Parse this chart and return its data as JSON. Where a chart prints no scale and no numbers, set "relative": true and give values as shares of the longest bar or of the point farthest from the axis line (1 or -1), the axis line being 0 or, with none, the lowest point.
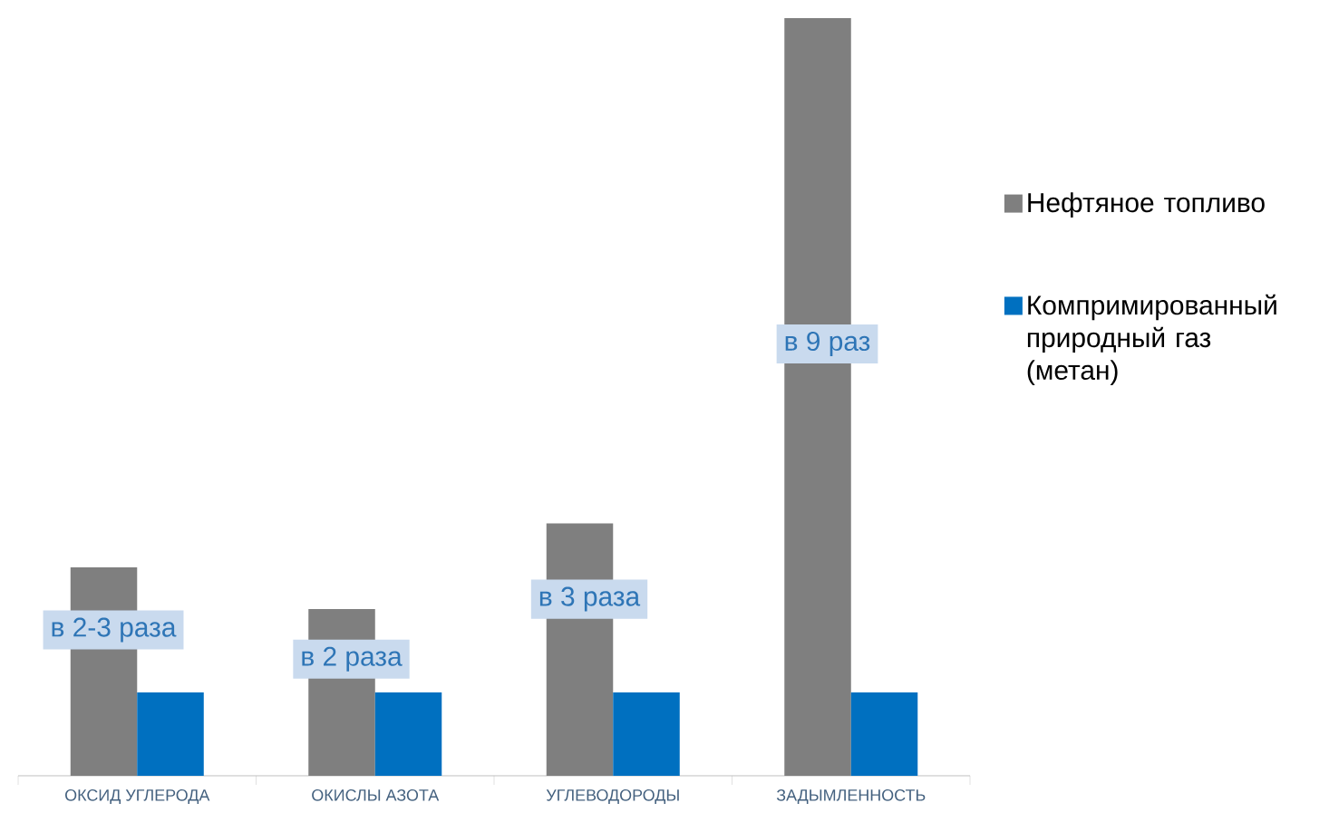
{
  "chart_data": {
    "type": "bar",
    "relative": true,
    "legend": "right",
    "categories": [
      "ОКСИД УГЛЕРОДА",
      "ОКИСЛЫ АЗОТА",
      "УГЛЕВОДОРОДЫ",
      "ЗАДЫМЛЕННОСТЬ"
    ],
    "series": [
      {
        "name": "Нефтяное топливо",
        "color": "#7f7f7f",
        "values": [
          0.275,
          0.22,
          0.333,
          1
        ]
      },
      {
        "name": "Компримированный природный газ (метан)",
        "color": "#0070c0",
        "values": [
          0.11,
          0.11,
          0.11,
          0.11
        ]
      }
    ],
    "annotations": [
      "в 2-3 раза",
      "в 2 раза",
      "в 3 раза",
      "в 9 раз"
    ]
  }
}
